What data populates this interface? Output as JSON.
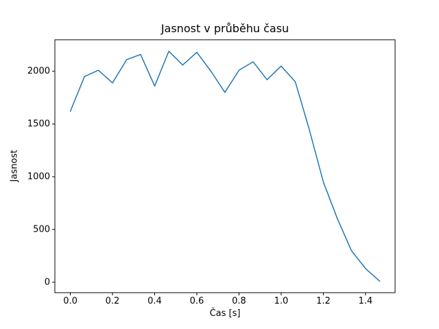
{
  "chart_data": {
    "type": "line",
    "title": "Jasnost v průběhu času",
    "xlabel": "Čas [s]",
    "ylabel": "Jasnost",
    "x": [
      0.0,
      0.067,
      0.133,
      0.2,
      0.267,
      0.333,
      0.4,
      0.467,
      0.533,
      0.6,
      0.667,
      0.733,
      0.8,
      0.867,
      0.933,
      1.0,
      1.067,
      1.133,
      1.2,
      1.267,
      1.333,
      1.4,
      1.467
    ],
    "y": [
      1620,
      1950,
      2010,
      1890,
      2110,
      2160,
      1860,
      2190,
      2060,
      2180,
      2000,
      1800,
      2010,
      2090,
      1920,
      2050,
      1900,
      1450,
      950,
      600,
      300,
      130,
      10
    ],
    "xticks": [
      0.0,
      0.2,
      0.4,
      0.6,
      0.8,
      1.0,
      1.2,
      1.4
    ],
    "xtick_labels": [
      "0.0",
      "0.2",
      "0.4",
      "0.6",
      "0.8",
      "1.0",
      "1.2",
      "1.4"
    ],
    "yticks": [
      0,
      500,
      1000,
      1500,
      2000
    ],
    "ytick_labels": [
      "0",
      "500",
      "1000",
      "1500",
      "2000"
    ],
    "xlim": [
      -0.0733,
      1.5403
    ],
    "ylim": [
      -99,
      2299
    ],
    "line_color": "#1f77b4",
    "spine_color": "#000000",
    "background": "#ffffff",
    "grid": false,
    "legend": "none"
  }
}
